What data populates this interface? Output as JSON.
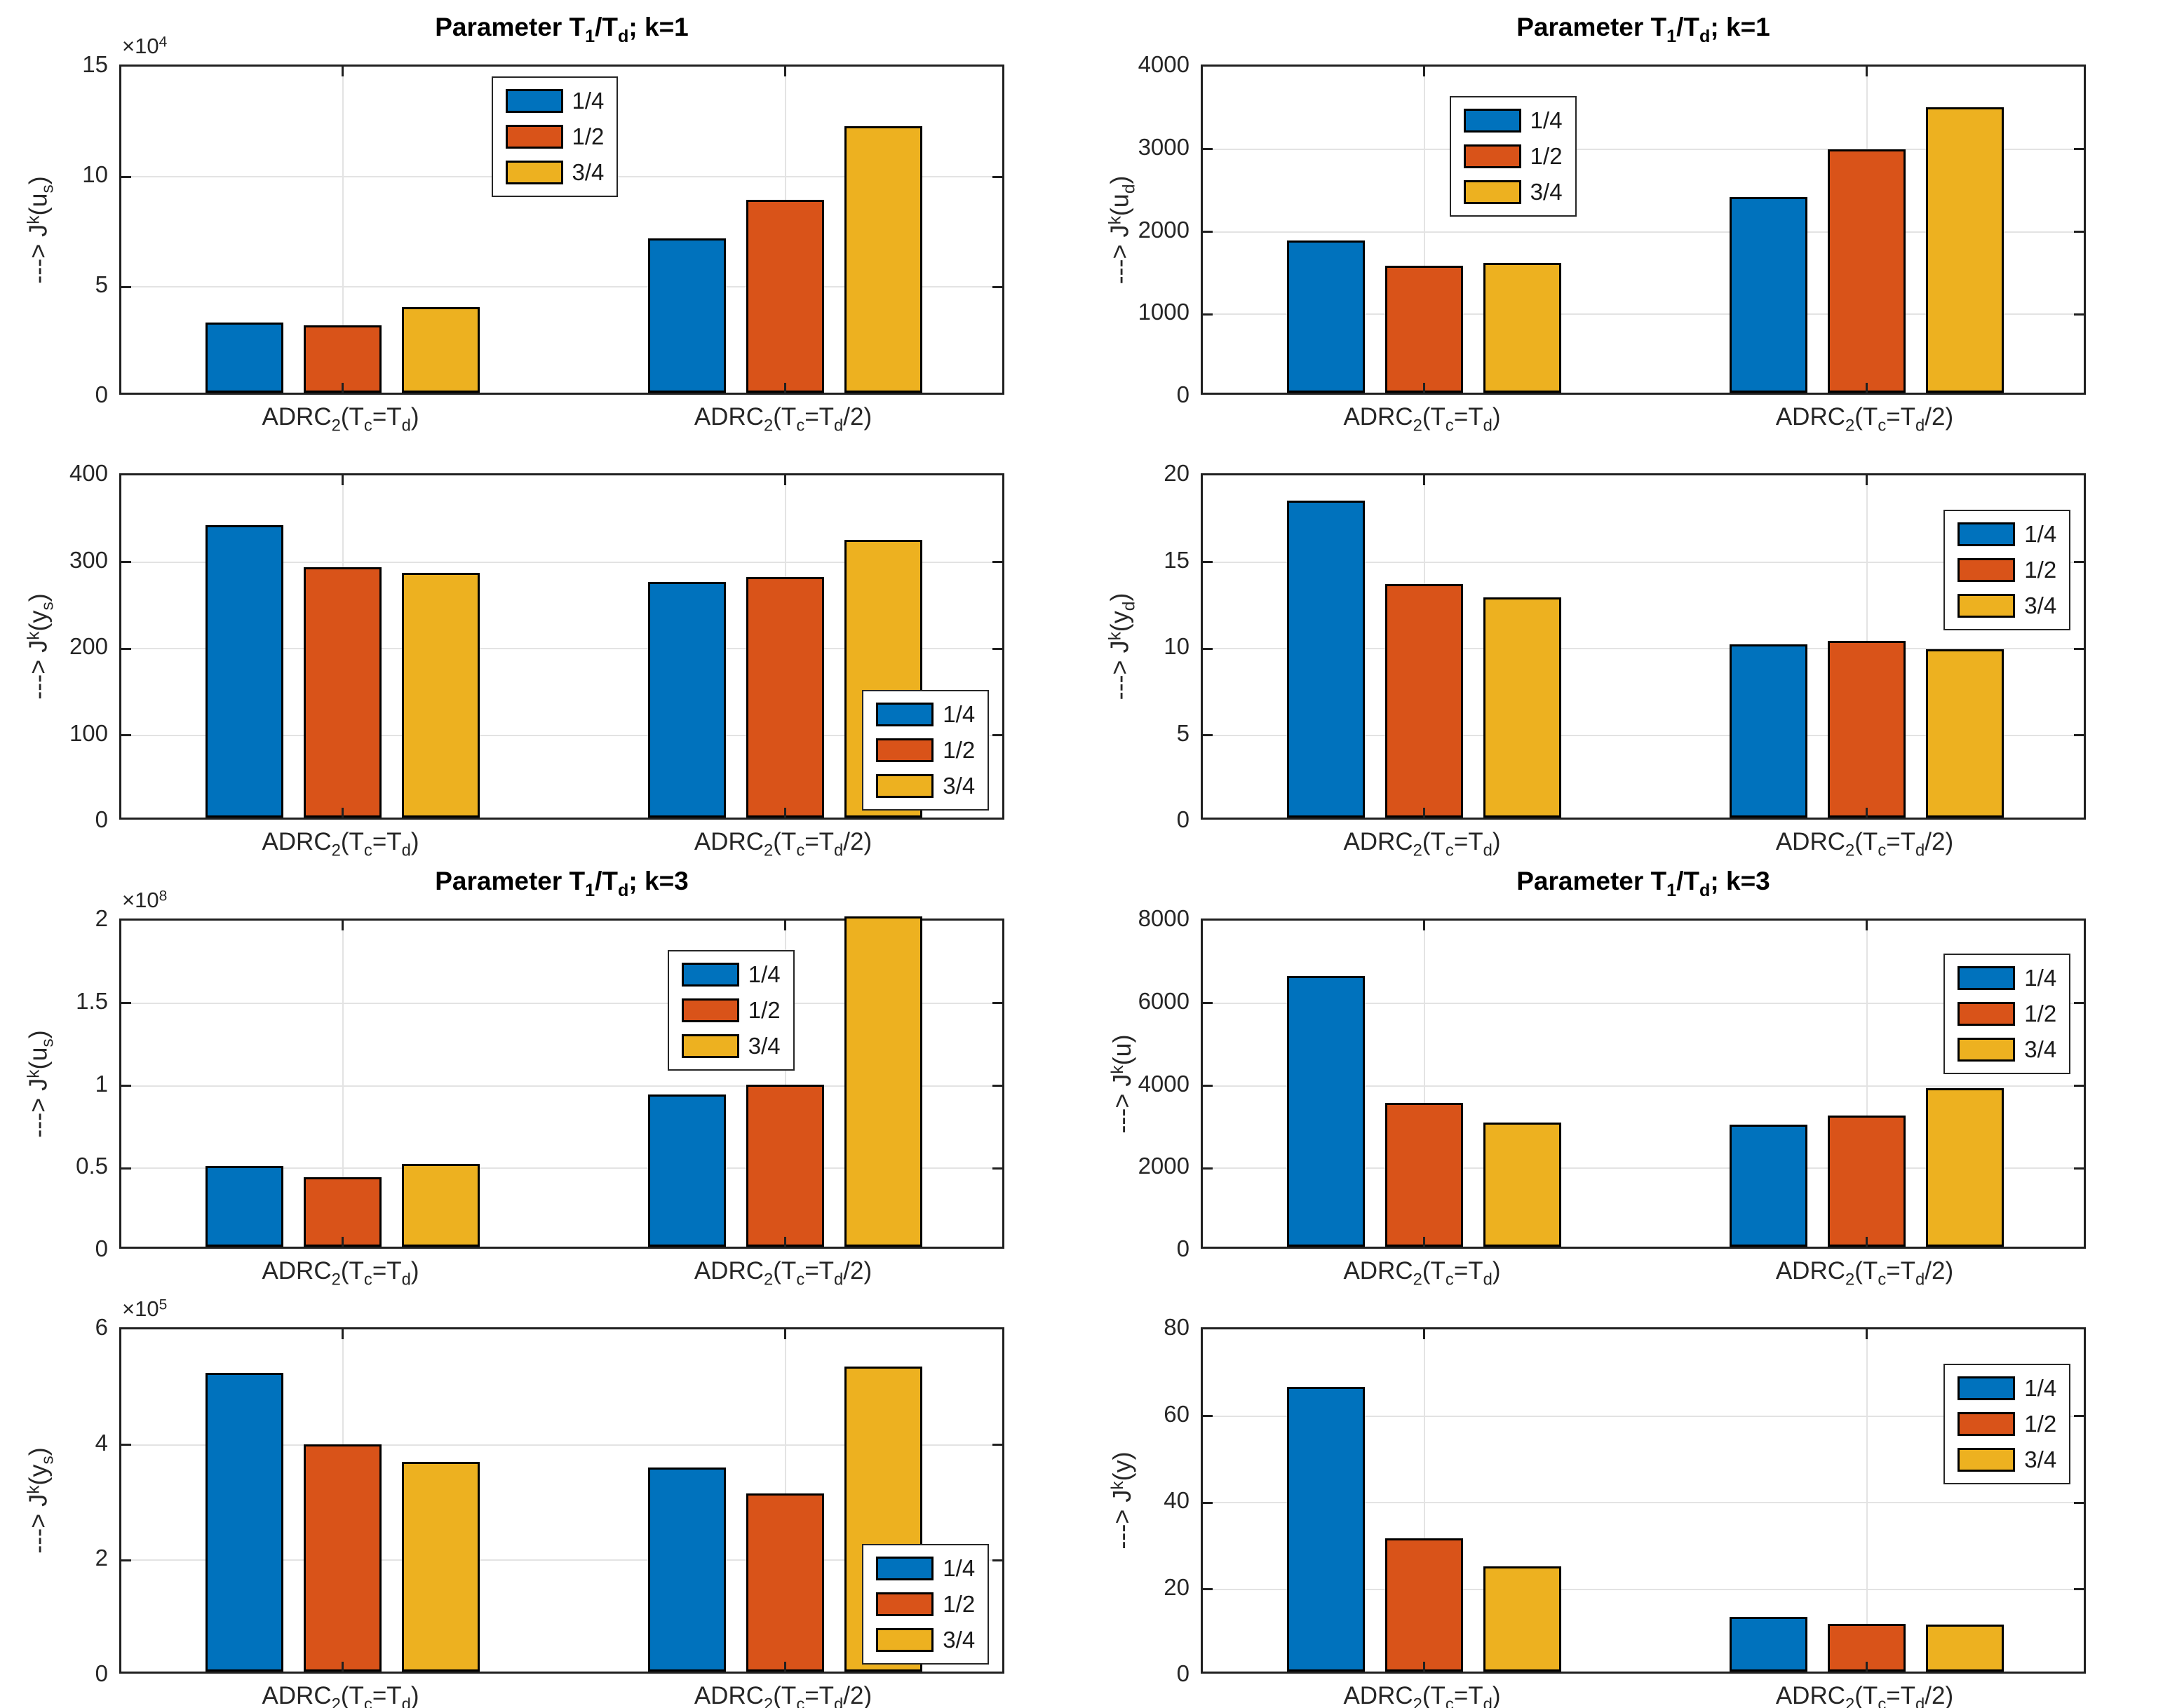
{
  "figure": {
    "kind": "matlab-style bar chart figure",
    "rows": 4,
    "cols": 2,
    "background": "#ffffff"
  },
  "chart_style": {
    "colors": [
      "#0072BD",
      "#D95319",
      "#EDB120"
    ],
    "grid_color": "#e3e3e3",
    "axis_color": "#202020",
    "text_color": "#262626"
  },
  "chart_data": [
    {
      "type": "bar",
      "position": {
        "row": 1,
        "col": 1
      },
      "title": "Parameter T_1/T_d; k=1",
      "ylabel": "---> J^k(u_s)",
      "exponent": "×10^4",
      "ylim": [
        0,
        15
      ],
      "yticks": [
        0,
        5,
        10,
        15
      ],
      "grid": true,
      "categories": [
        "ADRC_2(T_c=T_d)",
        "ADRC_2(T_c=T_d/2)"
      ],
      "series": [
        {
          "name": "1/4",
          "values": [
            3.2,
            7.0
          ]
        },
        {
          "name": "1/2",
          "values": [
            3.05,
            8.75
          ]
        },
        {
          "name": "3/4",
          "values": [
            3.9,
            12.1
          ]
        }
      ],
      "legend_pos": {
        "left": 42,
        "top": 3
      }
    },
    {
      "type": "bar",
      "position": {
        "row": 1,
        "col": 2
      },
      "title": "Parameter T_1/T_d; k=1",
      "ylabel": "---> J^k(u_d)",
      "exponent": "",
      "ylim": [
        0,
        4000
      ],
      "yticks": [
        0,
        1000,
        2000,
        3000,
        4000
      ],
      "grid": true,
      "categories": [
        "ADRC_2(T_c=T_d)",
        "ADRC_2(T_c=T_d/2)"
      ],
      "series": [
        {
          "name": "1/4",
          "values": [
            1840,
            2370
          ]
        },
        {
          "name": "1/2",
          "values": [
            1540,
            2950
          ]
        },
        {
          "name": "3/4",
          "values": [
            1570,
            3460
          ]
        }
      ],
      "legend_pos": {
        "left": 28,
        "top": 9
      }
    },
    {
      "type": "bar",
      "position": {
        "row": 2,
        "col": 1
      },
      "title": "",
      "ylabel": "---> J^k(y_s)",
      "exponent": "",
      "ylim": [
        0,
        400
      ],
      "yticks": [
        0,
        100,
        200,
        300,
        400
      ],
      "grid": true,
      "categories": [
        "ADRC_2(T_c=T_d)",
        "ADRC_2(T_c=T_d/2)"
      ],
      "series": [
        {
          "name": "1/4",
          "values": [
            338,
            272
          ]
        },
        {
          "name": "1/2",
          "values": [
            289,
            278
          ]
        },
        {
          "name": "3/4",
          "values": [
            283,
            321
          ]
        }
      ],
      "legend_pos": {
        "right": 1.5,
        "bottom": 2
      }
    },
    {
      "type": "bar",
      "position": {
        "row": 2,
        "col": 2
      },
      "title": "",
      "ylabel": "---> J^k(y_d)",
      "exponent": "",
      "ylim": [
        0,
        20
      ],
      "yticks": [
        0,
        5,
        10,
        15,
        20
      ],
      "grid": true,
      "categories": [
        "ADRC_2(T_c=T_d)",
        "ADRC_2(T_c=T_d/2)"
      ],
      "series": [
        {
          "name": "1/4",
          "values": [
            18.3,
            10.0
          ]
        },
        {
          "name": "1/2",
          "values": [
            13.5,
            10.2
          ]
        },
        {
          "name": "3/4",
          "values": [
            12.7,
            9.7
          ]
        }
      ],
      "legend_pos": {
        "right": 1.5,
        "top": 10
      }
    },
    {
      "type": "bar",
      "position": {
        "row": 3,
        "col": 1
      },
      "title": "Parameter T_1/T_d; k=3",
      "ylabel": "---> J^k(u_s)",
      "exponent": "×10^8",
      "ylim": [
        0,
        2
      ],
      "yticks": [
        0,
        0.5,
        1,
        1.5,
        2
      ],
      "grid": true,
      "categories": [
        "ADRC_2(T_c=T_d)",
        "ADRC_2(T_c=T_d/2)"
      ],
      "series": [
        {
          "name": "1/4",
          "values": [
            0.49,
            0.92
          ]
        },
        {
          "name": "1/2",
          "values": [
            0.42,
            0.98
          ]
        },
        {
          "name": "3/4",
          "values": [
            0.5,
            2.0
          ]
        }
      ],
      "legend_pos": {
        "left": 62,
        "top": 9
      }
    },
    {
      "type": "bar",
      "position": {
        "row": 3,
        "col": 2
      },
      "title": "Parameter T_1/T_d; k=3",
      "ylabel": "---> J^k(u)",
      "exponent": "",
      "ylim": [
        0,
        8000
      ],
      "yticks": [
        0,
        2000,
        4000,
        6000,
        8000
      ],
      "grid": true,
      "categories": [
        "ADRC_2(T_c=T_d)",
        "ADRC_2(T_c=T_d/2)"
      ],
      "series": [
        {
          "name": "1/4",
          "values": [
            6560,
            2960
          ]
        },
        {
          "name": "1/2",
          "values": [
            3480,
            3180
          ]
        },
        {
          "name": "3/4",
          "values": [
            3010,
            3840
          ]
        }
      ],
      "legend_pos": {
        "right": 1.5,
        "top": 10
      }
    },
    {
      "type": "bar",
      "position": {
        "row": 4,
        "col": 1
      },
      "title": "",
      "ylabel": "---> J^k(y_s)",
      "exponent": "×10^5",
      "ylim": [
        0,
        6
      ],
      "yticks": [
        0,
        2,
        4,
        6
      ],
      "grid": true,
      "categories": [
        "ADRC_2(T_c=T_d)",
        "ADRC_2(T_c=T_d/2)"
      ],
      "series": [
        {
          "name": "1/4",
          "values": [
            5.18,
            3.53
          ]
        },
        {
          "name": "1/2",
          "values": [
            3.94,
            3.09
          ]
        },
        {
          "name": "3/4",
          "values": [
            3.63,
            5.28
          ]
        }
      ],
      "legend_pos": {
        "right": 1.5,
        "bottom": 2
      }
    },
    {
      "type": "bar",
      "position": {
        "row": 4,
        "col": 2
      },
      "title": "",
      "ylabel": "---> J^k(y)",
      "exponent": "",
      "ylim": [
        0,
        80
      ],
      "yticks": [
        0,
        20,
        40,
        60,
        80
      ],
      "grid": true,
      "categories": [
        "ADRC_2(T_c=T_d)",
        "ADRC_2(T_c=T_d/2)"
      ],
      "series": [
        {
          "name": "1/4",
          "values": [
            65.7,
            12.6
          ]
        },
        {
          "name": "1/2",
          "values": [
            30.7,
            11.0
          ]
        },
        {
          "name": "3/4",
          "values": [
            24.3,
            10.9
          ]
        }
      ],
      "legend_pos": {
        "right": 1.5,
        "top": 10
      }
    }
  ]
}
